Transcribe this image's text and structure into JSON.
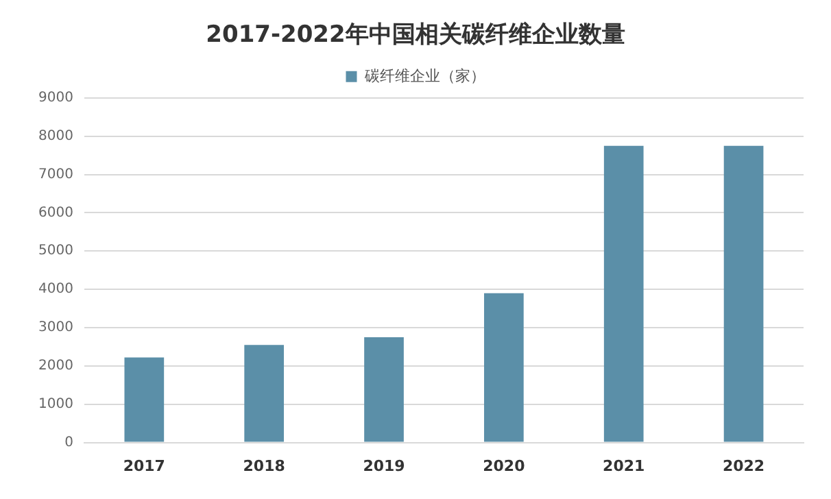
{
  "chart_data": {
    "type": "bar",
    "title": "2017-2022年中国相关碳纤维企业数量",
    "categories": [
      "2017",
      "2018",
      "2019",
      "2020",
      "2021",
      "2022"
    ],
    "series": [
      {
        "name": "碳纤维企业（家）",
        "color": "#5b8fa8",
        "values": [
          2220,
          2550,
          2750,
          3900,
          7750,
          7750
        ]
      }
    ],
    "ylim": [
      0,
      9000
    ],
    "yticks": [
      0,
      1000,
      2000,
      3000,
      4000,
      5000,
      6000,
      7000,
      8000,
      9000
    ],
    "grid": "y",
    "legend": "top"
  }
}
